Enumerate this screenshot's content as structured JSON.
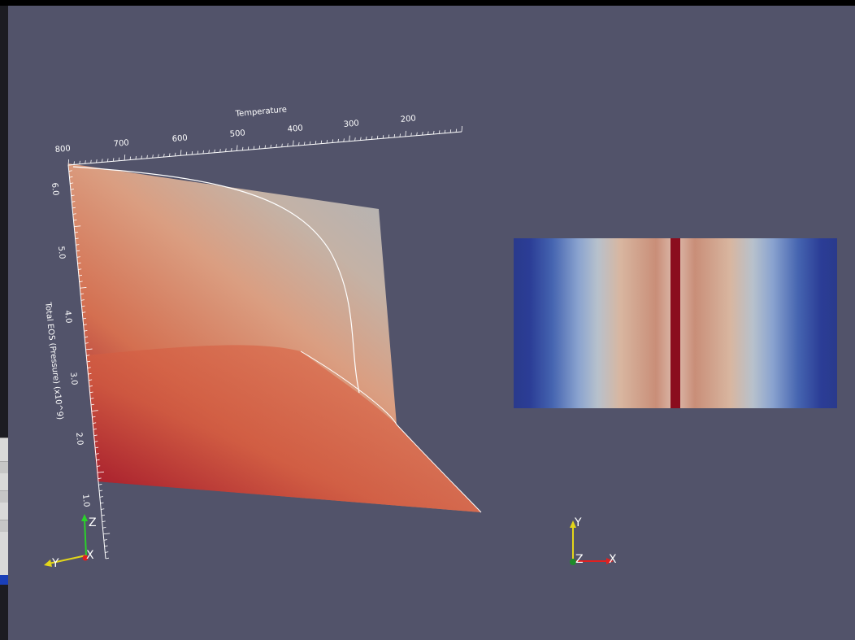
{
  "left_view": {
    "x_axis": {
      "title": "Temperature",
      "tick_labels": [
        "800",
        "700",
        "600",
        "500",
        "400",
        "300",
        "200"
      ]
    },
    "y_axis": {
      "title": "Total EOS (Pressure) (x10^9)",
      "tick_labels": [
        "6.0",
        "5.0",
        "4.0",
        "3.0",
        "2.0",
        "1.0"
      ]
    },
    "orientation_axes": {
      "labels": [
        "Z",
        "Y",
        "X"
      ]
    }
  },
  "right_view": {
    "color_strip": {
      "palette": [
        "#2a3a8c",
        "#3b55a8",
        "#6e8fc6",
        "#b5bfcc",
        "#d9b9a2",
        "#c9907a",
        "#8b0d1e"
      ]
    },
    "orientation_axes": {
      "labels": [
        "Y",
        "Z",
        "X"
      ]
    }
  },
  "colors": {
    "background": "#52536a",
    "axis": "#ffffff",
    "surface_high": "#a8b8c4",
    "surface_low": "#a3162a",
    "highlight": "#8b0d1e"
  }
}
